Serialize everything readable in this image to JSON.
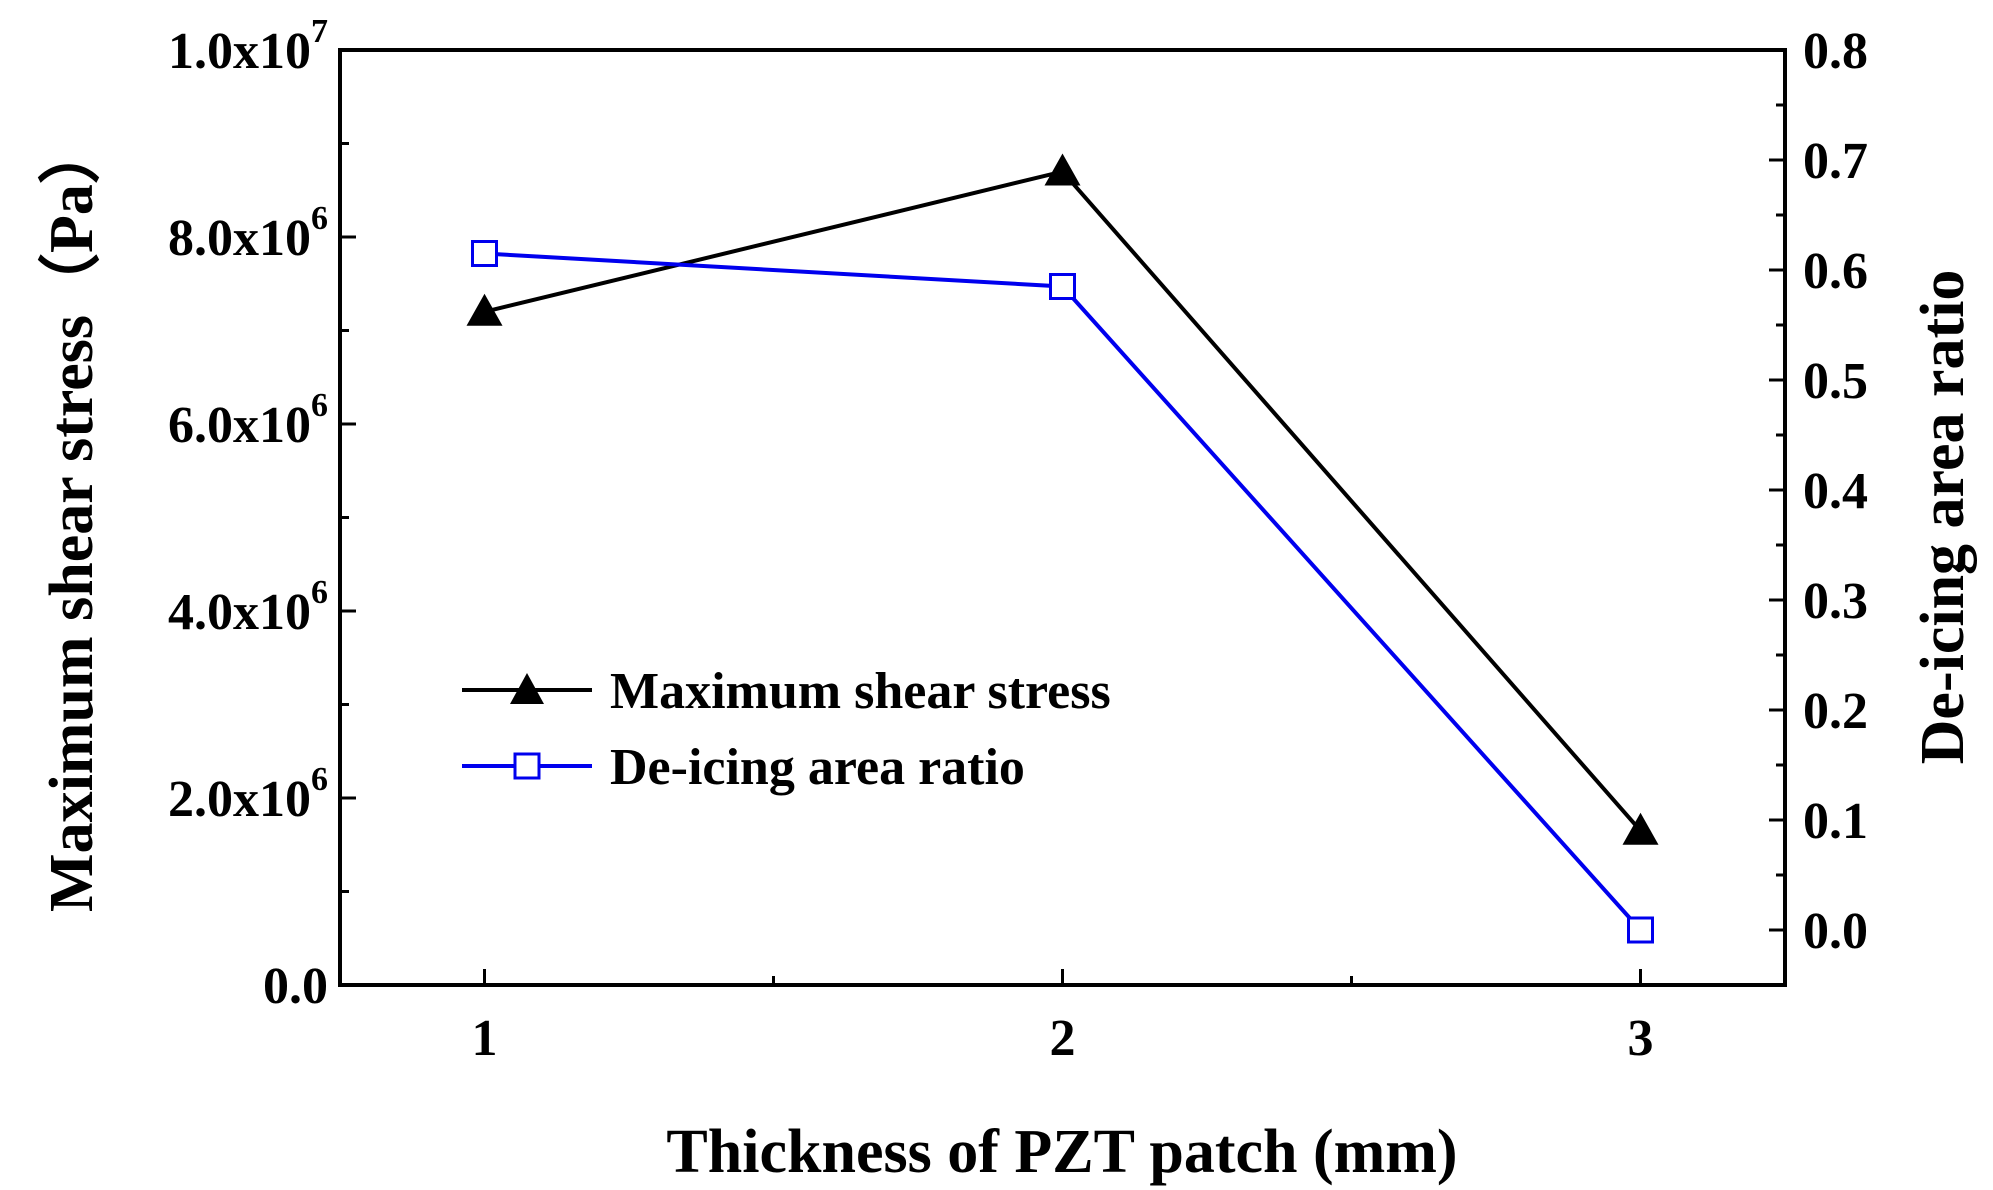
{
  "chart_data": {
    "type": "line",
    "x": [
      1,
      2,
      3
    ],
    "xlabel": "Thickness of PZT patch (mm)",
    "ylabel_left": "Maximum shear stress（Pa）",
    "ylabel_right": "De-icing area ratio",
    "xlim": [
      0.75,
      3.25
    ],
    "ylim_left": [
      0,
      10000000
    ],
    "ylim_right": [
      -0.05,
      0.8
    ],
    "x_ticks": [
      {
        "value": 1,
        "label": "1"
      },
      {
        "value": 2,
        "label": "2"
      },
      {
        "value": 3,
        "label": "3"
      }
    ],
    "x_minor_ticks": [
      1.5,
      2.5
    ],
    "y_left_ticks": [
      {
        "value": 0,
        "mantissa": "0.0",
        "exp": ""
      },
      {
        "value": 2000000,
        "mantissa": "2.0x10",
        "exp": "6"
      },
      {
        "value": 4000000,
        "mantissa": "4.0x10",
        "exp": "6"
      },
      {
        "value": 6000000,
        "mantissa": "6.0x10",
        "exp": "6"
      },
      {
        "value": 8000000,
        "mantissa": "8.0x10",
        "exp": "6"
      },
      {
        "value": 10000000,
        "mantissa": "1.0x10",
        "exp": "7"
      }
    ],
    "y_left_minor_ticks": [
      1000000,
      3000000,
      5000000,
      7000000,
      9000000
    ],
    "y_right_ticks": [
      {
        "value": 0.0,
        "label": "0.0"
      },
      {
        "value": 0.1,
        "label": "0.1"
      },
      {
        "value": 0.2,
        "label": "0.2"
      },
      {
        "value": 0.3,
        "label": "0.3"
      },
      {
        "value": 0.4,
        "label": "0.4"
      },
      {
        "value": 0.5,
        "label": "0.5"
      },
      {
        "value": 0.6,
        "label": "0.6"
      },
      {
        "value": 0.7,
        "label": "0.7"
      },
      {
        "value": 0.8,
        "label": "0.8"
      }
    ],
    "y_right_minor_ticks": [
      -0.05,
      0.05,
      0.15,
      0.25,
      0.35,
      0.45,
      0.55,
      0.65,
      0.75
    ],
    "series": [
      {
        "name": "Maximum shear stress",
        "axis": "left",
        "color": "#000000",
        "marker": "filled-triangle",
        "values": [
          7200000,
          8700000,
          1650000
        ]
      },
      {
        "name": "De-icing area ratio",
        "axis": "right",
        "color": "#0000ee",
        "marker": "open-square",
        "values": [
          0.615,
          0.585,
          0.0
        ]
      }
    ],
    "legend_position": "middle-left",
    "grid": false
  }
}
